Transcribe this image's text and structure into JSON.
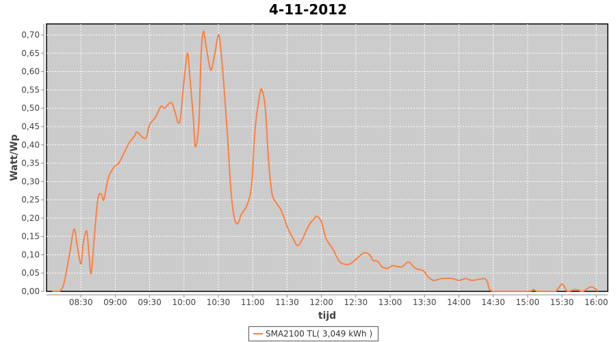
{
  "chart_data": {
    "type": "line",
    "title": "4-11-2012",
    "xlabel": "tijd",
    "ylabel": "Watt/Wp",
    "xlim": [
      "08:00",
      "16:10"
    ],
    "ylim": [
      0,
      0.73
    ],
    "grid": true,
    "legend_placement": "bottom",
    "x_ticks": [
      "08:30",
      "09:00",
      "09:30",
      "10:00",
      "10:30",
      "11:00",
      "11:30",
      "12:00",
      "12:30",
      "13:00",
      "13:30",
      "14:00",
      "14:30",
      "15:00",
      "15:30",
      "16:00"
    ],
    "y_ticks": [
      "0,00",
      "0,05",
      "0,10",
      "0,15",
      "0,20",
      "0,25",
      "0,30",
      "0,35",
      "0,40",
      "0,45",
      "0,50",
      "0,55",
      "0,60",
      "0,65",
      "0,70"
    ],
    "colors": {
      "series": "#ff7f3f",
      "plot_background": "#cccccc",
      "grid": "#ffffff"
    },
    "series": [
      {
        "name": "SMA2100 TL( 3,049 kWh )",
        "points": [
          [
            "08:05",
            0
          ],
          [
            "08:11",
            0
          ],
          [
            "08:15",
            0.02
          ],
          [
            "08:20",
            0.1
          ],
          [
            "08:24",
            0.17
          ],
          [
            "08:27",
            0.12
          ],
          [
            "08:30",
            0.075
          ],
          [
            "08:32",
            0.13
          ],
          [
            "08:35",
            0.165
          ],
          [
            "08:37",
            0.105
          ],
          [
            "08:39",
            0.05
          ],
          [
            "08:42",
            0.16
          ],
          [
            "08:45",
            0.255
          ],
          [
            "08:48",
            0.265
          ],
          [
            "08:50",
            0.25
          ],
          [
            "08:54",
            0.31
          ],
          [
            "08:59",
            0.34
          ],
          [
            "09:03",
            0.35
          ],
          [
            "09:08",
            0.38
          ],
          [
            "09:12",
            0.405
          ],
          [
            "09:17",
            0.425
          ],
          [
            "09:19",
            0.435
          ],
          [
            "09:24",
            0.42
          ],
          [
            "09:27",
            0.42
          ],
          [
            "09:30",
            0.455
          ],
          [
            "09:35",
            0.475
          ],
          [
            "09:40",
            0.505
          ],
          [
            "09:43",
            0.5
          ],
          [
            "09:49",
            0.515
          ],
          [
            "09:53",
            0.48
          ],
          [
            "09:55",
            0.46
          ],
          [
            "09:57",
            0.475
          ],
          [
            "10:00",
            0.575
          ],
          [
            "10:03",
            0.65
          ],
          [
            "10:05",
            0.59
          ],
          [
            "10:08",
            0.48
          ],
          [
            "10:10",
            0.395
          ],
          [
            "10:13",
            0.46
          ],
          [
            "10:15",
            0.65
          ],
          [
            "10:17",
            0.71
          ],
          [
            "10:19",
            0.675
          ],
          [
            "10:22",
            0.62
          ],
          [
            "10:24",
            0.605
          ],
          [
            "10:27",
            0.65
          ],
          [
            "10:30",
            0.7
          ],
          [
            "10:32",
            0.665
          ],
          [
            "10:35",
            0.555
          ],
          [
            "10:38",
            0.425
          ],
          [
            "10:41",
            0.275
          ],
          [
            "10:44",
            0.2
          ],
          [
            "10:47",
            0.185
          ],
          [
            "10:50",
            0.21
          ],
          [
            "10:55",
            0.235
          ],
          [
            "10:59",
            0.29
          ],
          [
            "11:02",
            0.44
          ],
          [
            "11:06",
            0.535
          ],
          [
            "11:08",
            0.55
          ],
          [
            "11:11",
            0.5
          ],
          [
            "11:14",
            0.35
          ],
          [
            "11:17",
            0.265
          ],
          [
            "11:21",
            0.24
          ],
          [
            "11:25",
            0.22
          ],
          [
            "11:31",
            0.17
          ],
          [
            "11:36",
            0.14
          ],
          [
            "11:39",
            0.125
          ],
          [
            "11:43",
            0.14
          ],
          [
            "11:49",
            0.18
          ],
          [
            "11:54",
            0.2
          ],
          [
            "11:56",
            0.205
          ],
          [
            "12:00",
            0.19
          ],
          [
            "12:04",
            0.145
          ],
          [
            "12:10",
            0.115
          ],
          [
            "12:15",
            0.085
          ],
          [
            "12:19",
            0.075
          ],
          [
            "12:25",
            0.075
          ],
          [
            "12:31",
            0.09
          ],
          [
            "12:37",
            0.105
          ],
          [
            "12:42",
            0.1
          ],
          [
            "12:45",
            0.085
          ],
          [
            "12:49",
            0.082
          ],
          [
            "12:53",
            0.067
          ],
          [
            "12:58",
            0.063
          ],
          [
            "13:02",
            0.07
          ],
          [
            "13:10",
            0.067
          ],
          [
            "13:16",
            0.08
          ],
          [
            "13:22",
            0.063
          ],
          [
            "13:29",
            0.056
          ],
          [
            "13:33",
            0.04
          ],
          [
            "13:38",
            0.03
          ],
          [
            "13:45",
            0.035
          ],
          [
            "13:54",
            0.035
          ],
          [
            "14:00",
            0.03
          ],
          [
            "14:06",
            0.035
          ],
          [
            "14:12",
            0.03
          ],
          [
            "14:22",
            0.035
          ],
          [
            "14:25",
            0.025
          ],
          [
            "14:30",
            0
          ],
          [
            "15:00",
            0
          ],
          [
            "15:05",
            0.005
          ],
          [
            "15:09",
            0
          ],
          [
            "15:24",
            0
          ],
          [
            "15:30",
            0.02
          ],
          [
            "15:35",
            0
          ],
          [
            "15:42",
            0.005
          ],
          [
            "15:48",
            0
          ],
          [
            "15:55",
            0.012
          ],
          [
            "16:00",
            0.005
          ],
          [
            "16:01",
            0
          ]
        ]
      }
    ]
  }
}
